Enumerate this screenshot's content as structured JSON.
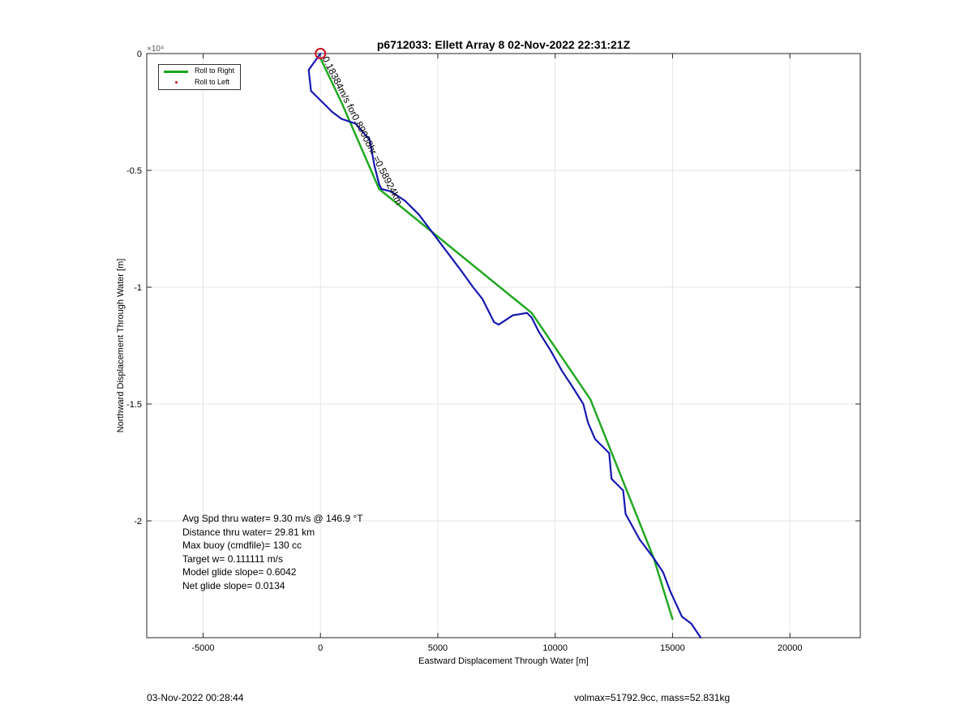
{
  "chart_data": {
    "type": "line",
    "title": "p6712033: Ellett Array 8 02-Nov-2022 22:31:21Z",
    "xlabel": "Eastward Displacement Through Water [m]",
    "ylabel": "Northward Displacement Through Water [m]",
    "y_exponent_label": "×10⁴",
    "xlim": [
      -7400,
      23000
    ],
    "ylim": [
      -2.5,
      0
    ],
    "x_ticks": [
      -5000,
      0,
      5000,
      10000,
      15000,
      20000
    ],
    "x_tick_labels": [
      "-5000",
      "0",
      "5000",
      "10000",
      "15000",
      "20000"
    ],
    "y_ticks": [
      0,
      -0.5,
      -1,
      -1.5,
      -2
    ],
    "y_tick_labels": [
      "0",
      "-0.5",
      "-1",
      "-1.5",
      "-2"
    ],
    "grid": true,
    "legend": {
      "placement": "top-left",
      "entries": [
        {
          "label": "Roll to Right",
          "color": "#1aa61a",
          "marker": "line"
        },
        {
          "label": "Roll to Left",
          "color": "#d01010",
          "marker": "dot"
        }
      ]
    },
    "series": [
      {
        "role": "planned-track",
        "color": "#22a822",
        "x": [
          0,
          900,
          2500,
          9000,
          11500,
          14200,
          15000
        ],
        "y": [
          -0.02,
          -0.21,
          -0.58,
          -1.11,
          -1.48,
          -2.16,
          -2.42
        ]
      },
      {
        "role": "actual-track",
        "color": "#1a1acc",
        "x": [
          0,
          -500,
          -400,
          0,
          500,
          900,
          1500,
          2100,
          2300,
          2500,
          2600,
          3000,
          3600,
          4200,
          4800,
          5400,
          6000,
          6500,
          6900,
          7400,
          7600,
          8200,
          8800,
          9000,
          9300,
          9800,
          10300,
          10700,
          11200,
          11400,
          11700,
          12300,
          12400,
          12900,
          13000,
          13600,
          14200,
          14600,
          14900,
          15400,
          15800,
          16200
        ],
        "y": [
          0,
          -0.07,
          -0.16,
          -0.2,
          -0.25,
          -0.28,
          -0.3,
          -0.37,
          -0.48,
          -0.56,
          -0.58,
          -0.59,
          -0.63,
          -0.69,
          -0.77,
          -0.85,
          -0.93,
          -1.0,
          -1.05,
          -1.15,
          -1.16,
          -1.12,
          -1.11,
          -1.13,
          -1.19,
          -1.27,
          -1.36,
          -1.42,
          -1.5,
          -1.58,
          -1.65,
          -1.71,
          -1.82,
          -1.87,
          -1.97,
          -2.08,
          -2.16,
          -2.22,
          -2.3,
          -2.41,
          -2.44,
          -2.5
        ]
      }
    ],
    "start_marker": {
      "x": 0,
      "y": 0,
      "color": "#cc1122"
    },
    "annotation": {
      "text": "0.18384m/s for0.89008hr =0.58924km",
      "x": 0,
      "y": 0,
      "rotation_deg": 63
    }
  },
  "stats": {
    "lines": [
      "Avg Spd thru water=  9.30 m/s @ 146.9 °T",
      "Distance thru water= 29.81 km",
      "Max buoy (cmdfile)= 130 cc",
      "Target w= 0.111111 m/s",
      "Model glide slope= 0.6042",
      "Net glide slope= 0.0134"
    ]
  },
  "footer": {
    "left": "03-Nov-2022 00:28:44",
    "right": "volmax=51792.9cc, mass=52.831kg"
  }
}
